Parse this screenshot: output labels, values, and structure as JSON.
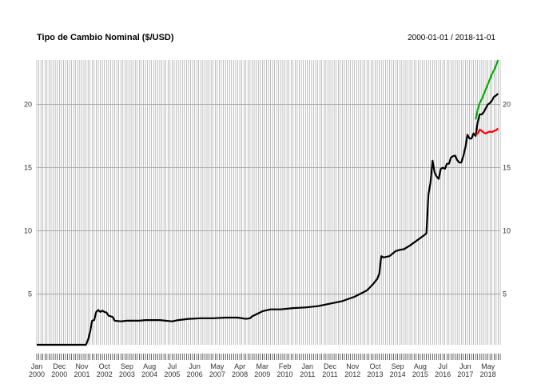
{
  "chart_data": {
    "type": "line",
    "title": "Tipo de Cambio Nominal ($/USD)",
    "date_range": "2000-01-01 / 2018-11-01",
    "xlabel": "",
    "ylabel": "",
    "x_start": "2000-01",
    "x_end": "2018-11",
    "ylim": [
      1,
      23.5
    ],
    "y_ticks": [
      5,
      10,
      15,
      20
    ],
    "grid": true,
    "x_ticks": [
      {
        "month": "Jan",
        "year": "2000",
        "x": "2000-01"
      },
      {
        "month": "Dec",
        "year": "2000",
        "x": "2000-12"
      },
      {
        "month": "Nov",
        "year": "2001",
        "x": "2001-11"
      },
      {
        "month": "Oct",
        "year": "2002",
        "x": "2002-10"
      },
      {
        "month": "Sep",
        "year": "2003",
        "x": "2003-09"
      },
      {
        "month": "Aug",
        "year": "2004",
        "x": "2004-08"
      },
      {
        "month": "Jul",
        "year": "2005",
        "x": "2005-07"
      },
      {
        "month": "Jun",
        "year": "2006",
        "x": "2006-06"
      },
      {
        "month": "May",
        "year": "2007",
        "x": "2007-05"
      },
      {
        "month": "Apr",
        "year": "2008",
        "x": "2008-04"
      },
      {
        "month": "Mar",
        "year": "2009",
        "x": "2009-03"
      },
      {
        "month": "Feb",
        "year": "2010",
        "x": "2010-02"
      },
      {
        "month": "Jan",
        "year": "2011",
        "x": "2011-01"
      },
      {
        "month": "Dec",
        "year": "2011",
        "x": "2011-12"
      },
      {
        "month": "Nov",
        "year": "2012",
        "x": "2012-11"
      },
      {
        "month": "Oct",
        "year": "2013",
        "x": "2013-10"
      },
      {
        "month": "Sep",
        "year": "2014",
        "x": "2014-09"
      },
      {
        "month": "Aug",
        "year": "2015",
        "x": "2015-08"
      },
      {
        "month": "Jul",
        "year": "2016",
        "x": "2016-07"
      },
      {
        "month": "Jun",
        "year": "2017",
        "x": "2017-06"
      },
      {
        "month": "May",
        "year": "2018",
        "x": "2018-05"
      }
    ],
    "series": [
      {
        "color": "#000000",
        "points": [
          [
            "2000-01",
            1.0
          ],
          [
            "2002-01",
            1.0
          ],
          [
            "2002-02",
            1.4
          ],
          [
            "2002-03",
            2.0
          ],
          [
            "2002-04",
            2.9
          ],
          [
            "2002-05",
            2.95
          ],
          [
            "2002-06",
            3.6
          ],
          [
            "2002-07",
            3.75
          ],
          [
            "2002-08",
            3.6
          ],
          [
            "2002-09",
            3.7
          ],
          [
            "2002-10",
            3.6
          ],
          [
            "2002-11",
            3.55
          ],
          [
            "2002-12",
            3.3
          ],
          [
            "2003-02",
            3.2
          ],
          [
            "2003-03",
            2.9
          ],
          [
            "2003-06",
            2.85
          ],
          [
            "2003-09",
            2.9
          ],
          [
            "2003-11",
            2.9
          ],
          [
            "2004-03",
            2.9
          ],
          [
            "2004-06",
            2.95
          ],
          [
            "2005-01",
            2.95
          ],
          [
            "2005-07",
            2.85
          ],
          [
            "2005-10",
            2.95
          ],
          [
            "2006-03",
            3.05
          ],
          [
            "2006-09",
            3.1
          ],
          [
            "2007-03",
            3.1
          ],
          [
            "2007-09",
            3.15
          ],
          [
            "2008-03",
            3.15
          ],
          [
            "2008-07",
            3.05
          ],
          [
            "2008-09",
            3.1
          ],
          [
            "2008-10",
            3.25
          ],
          [
            "2008-12",
            3.4
          ],
          [
            "2009-03",
            3.65
          ],
          [
            "2009-07",
            3.8
          ],
          [
            "2009-12",
            3.8
          ],
          [
            "2010-06",
            3.9
          ],
          [
            "2010-12",
            3.95
          ],
          [
            "2011-06",
            4.05
          ],
          [
            "2011-12",
            4.25
          ],
          [
            "2012-06",
            4.45
          ],
          [
            "2012-12",
            4.8
          ],
          [
            "2013-06",
            5.3
          ],
          [
            "2013-09",
            5.8
          ],
          [
            "2013-11",
            6.2
          ],
          [
            "2013-12",
            6.6
          ],
          [
            "2014-01",
            8.0
          ],
          [
            "2014-02",
            7.9
          ],
          [
            "2014-05",
            8.0
          ],
          [
            "2014-08",
            8.4
          ],
          [
            "2014-10",
            8.5
          ],
          [
            "2014-12",
            8.55
          ],
          [
            "2015-03",
            8.85
          ],
          [
            "2015-06",
            9.2
          ],
          [
            "2015-09",
            9.55
          ],
          [
            "2015-11",
            9.8
          ],
          [
            "2015-12",
            12.9
          ],
          [
            "2016-01",
            13.8
          ],
          [
            "2016-02",
            15.55
          ],
          [
            "2016-03",
            14.6
          ],
          [
            "2016-04",
            14.3
          ],
          [
            "2016-05",
            14.1
          ],
          [
            "2016-06",
            14.9
          ],
          [
            "2016-07",
            15.0
          ],
          [
            "2016-08",
            14.9
          ],
          [
            "2016-09",
            15.3
          ],
          [
            "2016-10",
            15.3
          ],
          [
            "2016-11",
            15.8
          ],
          [
            "2016-12",
            15.9
          ],
          [
            "2017-01",
            15.95
          ],
          [
            "2017-02",
            15.6
          ],
          [
            "2017-03",
            15.4
          ],
          [
            "2017-04",
            15.4
          ],
          [
            "2017-05",
            15.9
          ],
          [
            "2017-06",
            16.6
          ],
          [
            "2017-07",
            17.6
          ],
          [
            "2017-08",
            17.3
          ],
          [
            "2017-09",
            17.3
          ],
          [
            "2017-10",
            17.7
          ],
          [
            "2017-11",
            17.5
          ],
          [
            "2017-12",
            18.6
          ],
          [
            "2018-01",
            19.2
          ],
          [
            "2018-02",
            19.2
          ],
          [
            "2018-03",
            19.4
          ],
          [
            "2018-04",
            19.7
          ],
          [
            "2018-05",
            20.0
          ],
          [
            "2018-06",
            20.1
          ],
          [
            "2018-07",
            20.3
          ],
          [
            "2018-08",
            20.6
          ],
          [
            "2018-09",
            20.7
          ],
          [
            "2018-10",
            20.85
          ]
        ]
      },
      {
        "color": "#00b000",
        "points": [
          [
            "2017-11",
            18.8
          ],
          [
            "2017-12",
            19.6
          ],
          [
            "2018-01",
            20.1
          ],
          [
            "2018-02",
            20.4
          ],
          [
            "2018-03",
            20.8
          ],
          [
            "2018-04",
            21.2
          ],
          [
            "2018-05",
            21.6
          ],
          [
            "2018-06",
            22.0
          ],
          [
            "2018-07",
            22.4
          ],
          [
            "2018-08",
            22.7
          ],
          [
            "2018-09",
            23.1
          ],
          [
            "2018-10",
            23.5
          ]
        ]
      },
      {
        "color": "#ff0000",
        "points": [
          [
            "2017-11",
            17.6
          ],
          [
            "2017-12",
            17.7
          ],
          [
            "2018-01",
            18.0
          ],
          [
            "2018-02",
            17.9
          ],
          [
            "2018-03",
            17.75
          ],
          [
            "2018-04",
            17.7
          ],
          [
            "2018-05",
            17.8
          ],
          [
            "2018-06",
            17.85
          ],
          [
            "2018-07",
            17.8
          ],
          [
            "2018-08",
            17.9
          ],
          [
            "2018-09",
            17.95
          ],
          [
            "2018-10",
            18.1
          ]
        ]
      }
    ]
  }
}
